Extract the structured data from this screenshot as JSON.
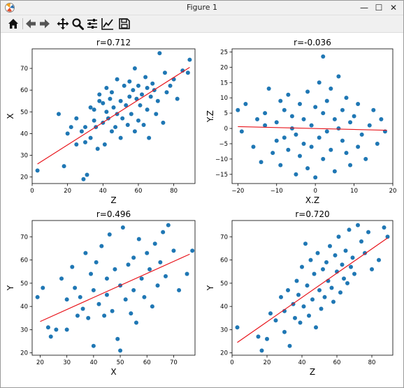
{
  "window": {
    "title": "Figure 1",
    "controls": {
      "minimize": "—",
      "maximize": "☐",
      "close": "✕"
    }
  },
  "toolbar": {
    "buttons": [
      "home-icon",
      "back-icon",
      "forward-icon",
      "pan-icon",
      "zoom-icon",
      "configure-subplots-icon",
      "edit-axes-icon",
      "save-icon"
    ]
  },
  "colors": {
    "points": "#1f77b4",
    "fit": "#e8141b"
  },
  "chart_data": [
    {
      "type": "scatter",
      "title": "r=0.712",
      "xlabel": "Z",
      "ylabel": "X",
      "xlim": [
        0,
        92
      ],
      "ylim": [
        17,
        79
      ],
      "xticks": [
        "0",
        "20",
        "40",
        "60",
        "80"
      ],
      "xtick_values": [
        0,
        20,
        40,
        60,
        80
      ],
      "yticks": [
        "20",
        "30",
        "40",
        "50",
        "60",
        "70"
      ],
      "ytick_values": [
        20,
        30,
        40,
        50,
        60,
        70
      ],
      "fit": {
        "x": [
          3,
          89
        ],
        "y": [
          26,
          70.5
        ]
      },
      "x": [
        3,
        15,
        18,
        20,
        22,
        25,
        25,
        28,
        29,
        30,
        30,
        31,
        33,
        33,
        35,
        35,
        36,
        37,
        38,
        38,
        40,
        40,
        41,
        42,
        42,
        43,
        44,
        45,
        45,
        46,
        47,
        48,
        48,
        50,
        50,
        51,
        52,
        53,
        54,
        55,
        55,
        56,
        57,
        58,
        58,
        59,
        60,
        60,
        61,
        62,
        63,
        64,
        65,
        65,
        66,
        67,
        68,
        69,
        70,
        71,
        72,
        74,
        75,
        76,
        78,
        80,
        82,
        85,
        88,
        89
      ],
      "y": [
        23,
        49,
        25,
        40,
        43,
        35,
        47,
        41,
        19,
        36,
        43,
        21,
        52,
        38,
        46,
        51,
        43,
        33,
        55,
        58,
        45,
        54,
        35,
        50,
        61,
        47,
        56,
        41,
        59,
        52,
        43,
        49,
        65,
        38,
        55,
        47,
        62,
        53,
        44,
        57,
        64,
        49,
        60,
        41,
        70,
        56,
        46,
        62,
        53,
        58,
        44,
        66,
        51,
        61,
        38,
        57,
        63,
        60,
        49,
        55,
        77,
        45,
        68,
        59,
        62,
        65,
        56,
        69,
        68,
        74
      ]
    },
    {
      "type": "scatter",
      "title": "r=-0.036",
      "xlabel": "X.Z",
      "ylabel": "Y.Z",
      "xlim": [
        -21.5,
        20
      ],
      "ylim": [
        -18,
        26
      ],
      "xticks": [
        "−20",
        "−10",
        "0",
        "10",
        "20"
      ],
      "xtick_values": [
        -20,
        -10,
        0,
        10,
        20
      ],
      "yticks": [
        "−15",
        "−10",
        "−5",
        "0",
        "5",
        "10",
        "15",
        "20",
        "25"
      ],
      "ytick_values": [
        -15,
        -10,
        -5,
        0,
        5,
        10,
        15,
        20,
        25
      ],
      "fit": {
        "x": [
          -20,
          18.5
        ],
        "y": [
          0.6,
          -0.6
        ]
      },
      "x": [
        -20,
        -19,
        -18,
        -16,
        -15,
        -14,
        -13,
        -13,
        -12,
        -11,
        -10,
        -10,
        -9,
        -9,
        -8,
        -8,
        -7,
        -7,
        -6,
        -6,
        -5,
        -5,
        -4,
        -4,
        -3,
        -3,
        -2,
        -2,
        -1,
        -1,
        0,
        0,
        1,
        1,
        2,
        2,
        2,
        3,
        3,
        4,
        4,
        5,
        5,
        6,
        6,
        7,
        7,
        8,
        8,
        9,
        9,
        10,
        11,
        11,
        12,
        13,
        14,
        15,
        16,
        17,
        18
      ],
      "y": [
        6,
        -1,
        8,
        -6,
        3,
        -11,
        5,
        1,
        13,
        -8,
        2,
        -4,
        9,
        -12,
        -3,
        6,
        11,
        -7,
        0,
        4,
        -15,
        -2,
        8,
        -9,
        3,
        -5,
        12,
        -13,
        1,
        -6,
        7,
        -16,
        15,
        -3,
        23.5,
        5,
        -10,
        -1,
        9,
        13,
        -7,
        3,
        -14,
        17,
        0,
        -4,
        6,
        10,
        -8,
        2,
        -12,
        4,
        -6,
        8,
        -2,
        -10,
        1,
        6,
        -5,
        3,
        -1
      ]
    },
    {
      "type": "scatter",
      "title": "r=0.496",
      "xlabel": "X",
      "ylabel": "Y",
      "xlim": [
        17,
        78
      ],
      "ylim": [
        19,
        77
      ],
      "xticks": [
        "20",
        "30",
        "40",
        "50",
        "60",
        "70"
      ],
      "xtick_values": [
        20,
        30,
        40,
        50,
        60,
        70
      ],
      "yticks": [
        "20",
        "30",
        "40",
        "50",
        "60",
        "70"
      ],
      "ytick_values": [
        20,
        30,
        40,
        50,
        60,
        70
      ],
      "fit": {
        "x": [
          20,
          76
        ],
        "y": [
          33.5,
          62.5
        ]
      },
      "x": [
        19,
        21,
        23,
        24,
        26,
        28,
        30,
        30,
        32,
        33,
        34,
        35,
        36,
        37,
        38,
        39,
        40,
        40,
        41,
        42,
        43,
        44,
        45,
        45,
        46,
        47,
        48,
        49,
        50,
        50,
        51,
        52,
        53,
        54,
        55,
        55,
        56,
        57,
        58,
        59,
        60,
        61,
        62,
        63,
        64,
        65,
        66,
        67,
        68,
        70,
        72,
        75,
        77
      ],
      "y": [
        44,
        48,
        31,
        27,
        30,
        52,
        30,
        43,
        57,
        48,
        36,
        44,
        39,
        63,
        35,
        54,
        23,
        47,
        59,
        41,
        66,
        36,
        52,
        45,
        71,
        38,
        56,
        26,
        21,
        49,
        74,
        43,
        58,
        37,
        61,
        47,
        33,
        69,
        52,
        44,
        63,
        56,
        40,
        67,
        49,
        59,
        72,
        53,
        75,
        64,
        47,
        54,
        64
      ]
    },
    {
      "type": "scatter",
      "title": "r=0.720",
      "xlabel": "Z",
      "ylabel": "Y",
      "xlim": [
        0,
        92
      ],
      "ylim": [
        19,
        77
      ],
      "xticks": [
        "0",
        "20",
        "40",
        "60",
        "80"
      ],
      "xtick_values": [
        0,
        20,
        40,
        60,
        80
      ],
      "yticks": [
        "20",
        "30",
        "40",
        "50",
        "60",
        "70"
      ],
      "ytick_values": [
        20,
        30,
        40,
        50,
        60,
        70
      ],
      "fit": {
        "x": [
          3,
          89
        ],
        "y": [
          24.5,
          69.5
        ]
      },
      "x": [
        3,
        15,
        17,
        20,
        22,
        25,
        28,
        30,
        30,
        32,
        33,
        35,
        36,
        37,
        38,
        39,
        40,
        41,
        42,
        43,
        44,
        45,
        46,
        47,
        48,
        49,
        50,
        51,
        52,
        53,
        54,
        55,
        56,
        57,
        58,
        59,
        60,
        61,
        62,
        63,
        64,
        65,
        66,
        67,
        68,
        69,
        70,
        72,
        74,
        76,
        78,
        80,
        84,
        87,
        89
      ],
      "y": [
        31,
        27,
        21,
        26,
        37,
        34,
        44,
        29,
        38,
        47,
        23,
        41,
        35,
        51,
        45,
        33,
        57,
        40,
        67,
        49,
        36,
        60,
        43,
        54,
        31,
        63,
        47,
        39,
        56,
        44,
        59,
        51,
        66,
        48,
        42,
        62,
        55,
        70,
        46,
        58,
        52,
        64,
        50,
        73,
        57,
        61,
        54,
        75,
        68,
        63,
        72,
        56,
        60,
        74,
        70
      ]
    }
  ]
}
